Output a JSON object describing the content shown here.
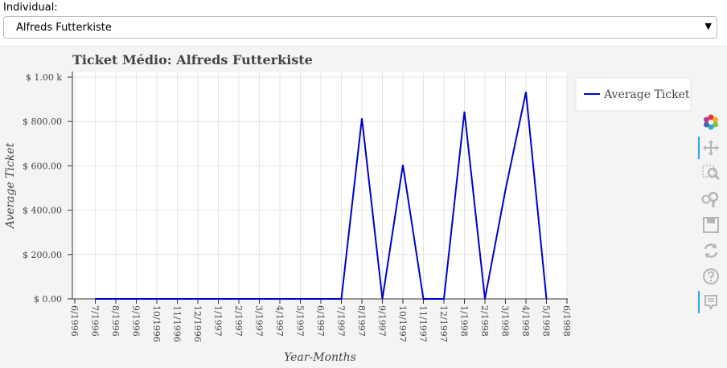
{
  "widget": {
    "label": "Individual:",
    "selected": "Alfreds Futterkiste"
  },
  "chart_data": {
    "type": "line",
    "title": "Ticket Médio: Alfreds Futterkiste",
    "xlabel": "Year-Months",
    "ylabel": "Average Ticket",
    "categories": [
      "6/1996",
      "7/1996",
      "8/1996",
      "9/1996",
      "10/1996",
      "11/1996",
      "12/1996",
      "1/1997",
      "2/1997",
      "3/1997",
      "4/1997",
      "5/1997",
      "6/1997",
      "7/1997",
      "8/1997",
      "9/1997",
      "10/1997",
      "11/1997",
      "12/1997",
      "1/1998",
      "2/1998",
      "3/1998",
      "4/1998",
      "5/1998",
      "6/1998"
    ],
    "yticks": [
      "$ 0.00",
      "$ 200.00",
      "$ 400.00",
      "$ 600.00",
      "$ 800.00",
      "$ 1.00 k"
    ],
    "ylim": [
      0,
      1000
    ],
    "grid": true,
    "legend_position": "right",
    "series": [
      {
        "name": "Average Ticket",
        "color": "#0000cc",
        "values": [
          null,
          0,
          0,
          0,
          0,
          0,
          0,
          0,
          0,
          0,
          0,
          0,
          0,
          0,
          814,
          0,
          604,
          0,
          0,
          845,
          0,
          491,
          933,
          0,
          null
        ]
      }
    ]
  },
  "toolbar": {
    "tools": [
      "bokeh-logo-icon",
      "pan-icon",
      "box-zoom-icon",
      "wheel-zoom-icon",
      "save-icon",
      "reset-icon",
      "help-icon",
      "hover-icon"
    ]
  },
  "colors": {
    "line": "#0000cc",
    "grid": "#e5e5e5",
    "background": "#f4f4f4",
    "tool_active": "#26aae1"
  }
}
